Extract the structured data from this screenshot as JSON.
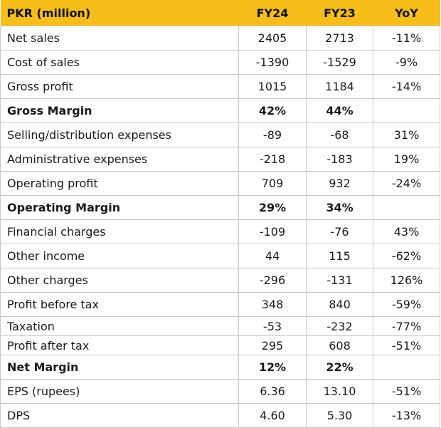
{
  "header": [
    "PKR (million)",
    "FY24",
    "FY23",
    "YoY"
  ],
  "rows": [
    {
      "label": "Net sales",
      "fy24": "2405",
      "fy23": "2713",
      "yoy": "-11%"
    },
    {
      "label": "Cost of sales",
      "fy24": "-1390",
      "fy23": "-1529",
      "yoy": "-9%"
    },
    {
      "label": "Gross profit",
      "fy24": "1015",
      "fy23": "1184",
      "yoy": "-14%"
    },
    {
      "label": "Gross Margin",
      "fy24": "42%",
      "fy23": "44%",
      "yoy": "",
      "bold": true
    },
    {
      "label": "Selling/distribution expenses",
      "fy24": "-89",
      "fy23": "-68",
      "yoy": "31%"
    },
    {
      "label": "Administrative expenses",
      "fy24": "-218",
      "fy23": "-183",
      "yoy": "19%"
    },
    {
      "label": "Operating profit",
      "fy24": "709",
      "fy23": "932",
      "yoy": "-24%"
    },
    {
      "label": "Operating Margin",
      "fy24": "29%",
      "fy23": "34%",
      "yoy": "",
      "bold": true
    },
    {
      "label": "Financial charges",
      "fy24": "-109",
      "fy23": "-76",
      "yoy": "43%"
    },
    {
      "label": "Other income",
      "fy24": "44",
      "fy23": "115",
      "yoy": "-62%"
    },
    {
      "label": "Other charges",
      "fy24": "-296",
      "fy23": "-131",
      "yoy": "126%"
    },
    {
      "label": "Profit before tax",
      "fy24": "348",
      "fy23": "840",
      "yoy": "-59%"
    },
    {
      "label": "Taxation",
      "fy24": "-53",
      "fy23": "-232",
      "yoy": "-77%",
      "short": true
    },
    {
      "label": "Profit after tax",
      "fy24": "295",
      "fy23": "608",
      "yoy": "-51%",
      "short": true
    },
    {
      "label": "Net Margin",
      "fy24": "12%",
      "fy23": "22%",
      "yoy": "",
      "bold": true
    },
    {
      "label": "EPS (rupees)",
      "fy24": "6.36",
      "fy23": "13.10",
      "yoy": "-51%"
    },
    {
      "label": "DPS",
      "fy24": "4.60",
      "fy23": "5.30",
      "yoy": "-13%"
    }
  ]
}
